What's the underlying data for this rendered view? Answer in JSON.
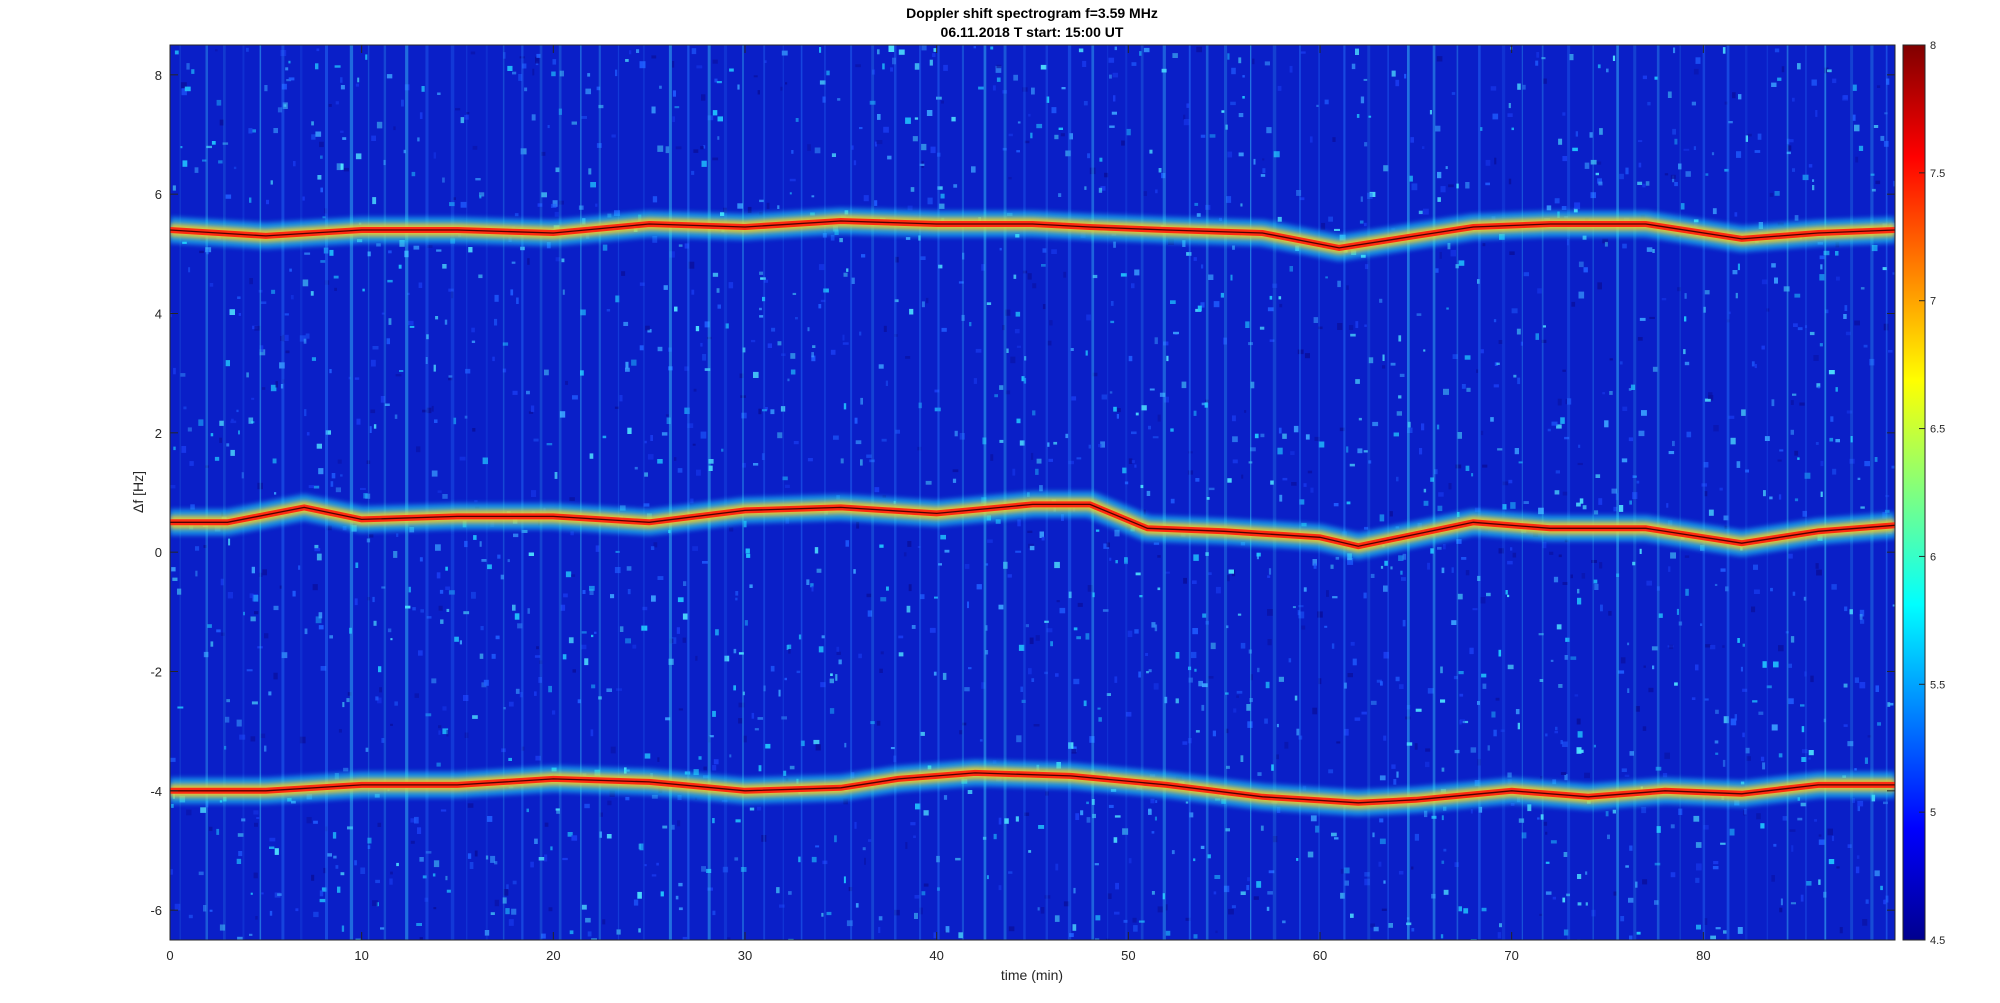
{
  "chart_data": {
    "type": "heatmap",
    "title": "Doppler shift spectrogram f=3.59 MHz",
    "subtitle": "06.11.2018   T start: 15:00 UT",
    "xlabel": "time (min)",
    "ylabel": "Δf [Hz]",
    "xlim": [
      0,
      90
    ],
    "ylim": [
      -6.5,
      8.5
    ],
    "x_ticks": [
      0,
      10,
      20,
      30,
      40,
      50,
      60,
      70,
      80
    ],
    "y_ticks": [
      -6,
      -4,
      -2,
      0,
      2,
      4,
      6,
      8
    ],
    "x_tick_labels": [
      "0",
      "10",
      "20",
      "30",
      "40",
      "50",
      "60",
      "70",
      "80"
    ],
    "y_tick_labels": [
      "-6",
      "-4",
      "-2",
      "0",
      "2",
      "4",
      "6",
      "8"
    ],
    "colorbar": {
      "range": [
        4.5,
        8
      ],
      "ticks": [
        4.5,
        5,
        5.5,
        6,
        6.5,
        7,
        7.5,
        8
      ],
      "tick_labels": [
        "4.5",
        "5",
        "5.5",
        "6",
        "6.5",
        "7",
        "7.5",
        "8"
      ],
      "colormap": "jet"
    },
    "grid": false,
    "series": [
      {
        "x": [
          0,
          5,
          10,
          15,
          20,
          25,
          30,
          35,
          40,
          45,
          48,
          52,
          57,
          61,
          65,
          68,
          72,
          77,
          82,
          86,
          90
        ],
        "values": [
          5.4,
          5.3,
          5.4,
          5.4,
          5.35,
          5.5,
          5.45,
          5.55,
          5.5,
          5.5,
          5.45,
          5.4,
          5.35,
          5.1,
          5.3,
          5.45,
          5.5,
          5.5,
          5.25,
          5.35,
          5.4
        ]
      },
      {
        "x": [
          0,
          3,
          7,
          10,
          15,
          20,
          25,
          30,
          35,
          40,
          45,
          48,
          51,
          55,
          60,
          62,
          65,
          68,
          72,
          77,
          82,
          86,
          90
        ],
        "values": [
          0.5,
          0.5,
          0.75,
          0.55,
          0.6,
          0.6,
          0.5,
          0.7,
          0.75,
          0.65,
          0.8,
          0.8,
          0.4,
          0.35,
          0.25,
          0.1,
          0.3,
          0.5,
          0.4,
          0.4,
          0.15,
          0.35,
          0.45
        ]
      },
      {
        "x": [
          0,
          5,
          10,
          15,
          20,
          25,
          30,
          35,
          38,
          42,
          47,
          52,
          57,
          62,
          65,
          70,
          74,
          78,
          82,
          86,
          90
        ],
        "values": [
          -4.0,
          -4.0,
          -3.9,
          -3.9,
          -3.8,
          -3.85,
          -4.0,
          -3.95,
          -3.8,
          -3.7,
          -3.75,
          -3.9,
          -4.1,
          -4.2,
          -4.15,
          -4.0,
          -4.1,
          -4.0,
          -4.05,
          -3.9,
          -3.9
        ]
      }
    ]
  }
}
